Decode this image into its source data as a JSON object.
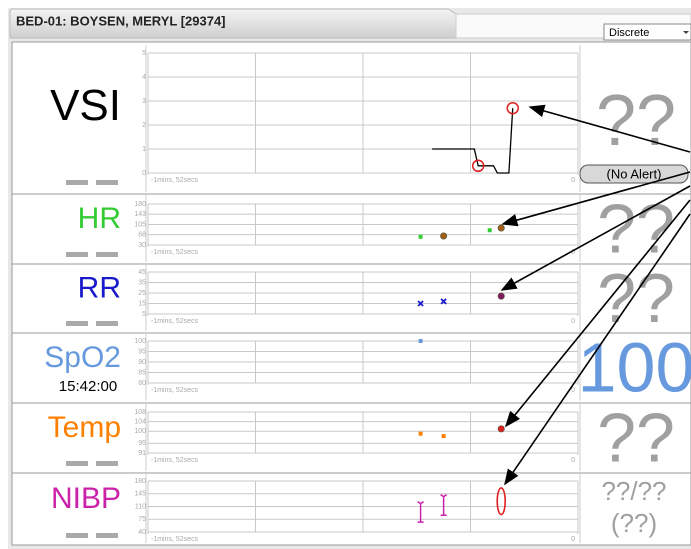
{
  "header": {
    "title": "BED-01: BOYSEN, MERYL [29374]",
    "mode": "Discrete"
  },
  "rows": [
    {
      "label": "VSI",
      "color": "#000000",
      "value": "??",
      "value_color": "#a0a0a0",
      "alert": "(No Alert)",
      "ylim": [
        0,
        5
      ],
      "yticks": [
        0,
        1,
        2,
        3,
        4,
        5
      ],
      "xlim": [
        -112,
        0
      ],
      "xticks": [
        {
          "value": -112,
          "label": "-1mins, 52secs"
        },
        0
      ],
      "series": [
        {
          "marker": "line",
          "color": "#000000",
          "x": [
            -38,
            -27,
            -26,
            -22,
            -21,
            -18,
            -17
          ],
          "values": [
            1,
            1,
            0.3,
            0.3,
            0,
            0,
            2.7
          ]
        },
        {
          "marker": "ring",
          "color": "#e02020",
          "x": [
            -26,
            -17
          ],
          "values": [
            0.3,
            2.7
          ]
        }
      ]
    },
    {
      "label": "HR",
      "color": "#33cc33",
      "value": "??",
      "value_color": "#a0a0a0",
      "ylim": [
        30,
        180
      ],
      "yticks": [
        30,
        68,
        105,
        143,
        180
      ],
      "xlim": [
        -112,
        0
      ],
      "xticks": [
        {
          "value": -112,
          "label": "-1mins, 52secs"
        },
        0
      ],
      "series": [
        {
          "marker": "square",
          "color": "#33cc33",
          "x": [
            -41,
            -23
          ],
          "values": [
            60,
            84
          ]
        },
        {
          "marker": "dot",
          "color": "#a0601a",
          "x": [
            -35,
            -20
          ],
          "values": [
            63,
            92
          ]
        }
      ]
    },
    {
      "label": "RR",
      "color": "#1a1acc",
      "value": "??",
      "value_color": "#a0a0a0",
      "ylim": [
        5,
        45
      ],
      "yticks": [
        5,
        15,
        25,
        35,
        45
      ],
      "xlim": [
        -112,
        0
      ],
      "xticks": [
        {
          "value": -112,
          "label": "-1mins, 52secs"
        },
        0
      ],
      "series": [
        {
          "marker": "cross",
          "color": "#1a1acc",
          "x": [
            -41,
            -35
          ],
          "values": [
            15,
            17
          ]
        },
        {
          "marker": "dot",
          "color": "#801a60",
          "x": [
            -20
          ],
          "values": [
            22
          ]
        }
      ]
    },
    {
      "label": "SpO2",
      "color": "#6699dd",
      "sub": "15:42:00",
      "value": "100",
      "value_color": "#6699dd",
      "ylim": [
        80,
        100
      ],
      "yticks": [
        80,
        85,
        90,
        95,
        100
      ],
      "xlim": [
        -112,
        0
      ],
      "xticks": [
        {
          "value": -112,
          "label": "-1mins, 52secs"
        },
        0
      ],
      "series": [
        {
          "marker": "square",
          "color": "#6699dd",
          "x": [
            -41
          ],
          "values": [
            100
          ]
        }
      ]
    },
    {
      "label": "Temp",
      "color": "#ff8000",
      "value": "??",
      "value_color": "#a0a0a0",
      "ylim": [
        91,
        108
      ],
      "yticks": [
        91,
        95,
        100,
        104,
        108
      ],
      "xlim": [
        -112,
        0
      ],
      "xticks": [
        {
          "value": -112,
          "label": "-1mins, 52secs"
        },
        0
      ],
      "series": [
        {
          "marker": "square",
          "color": "#ff8000",
          "x": [
            -41,
            -35
          ],
          "values": [
            99,
            98
          ]
        },
        {
          "marker": "dot",
          "color": "#e02020",
          "x": [
            -20
          ],
          "values": [
            101
          ]
        }
      ]
    },
    {
      "label": "NIBP",
      "color": "#cc22aa",
      "value": "??/??",
      "value2": "(??)",
      "value_color": "#a0a0a0",
      "ylim": [
        40,
        180
      ],
      "yticks": [
        40,
        75,
        110,
        145,
        180
      ],
      "xlim": [
        -112,
        0
      ],
      "xticks": [
        {
          "value": -112,
          "label": "-1mins, 52secs"
        },
        0
      ],
      "series": [
        {
          "marker": "range",
          "color": "#cc22aa",
          "x": [
            -41,
            -35
          ],
          "values": [
            118,
            137
          ],
          "low": [
            67,
            86
          ]
        },
        {
          "marker": "ellipse",
          "color": "#e02020",
          "x": [
            -20
          ],
          "values": [
            161
          ],
          "low": [
            88
          ]
        }
      ]
    }
  ]
}
